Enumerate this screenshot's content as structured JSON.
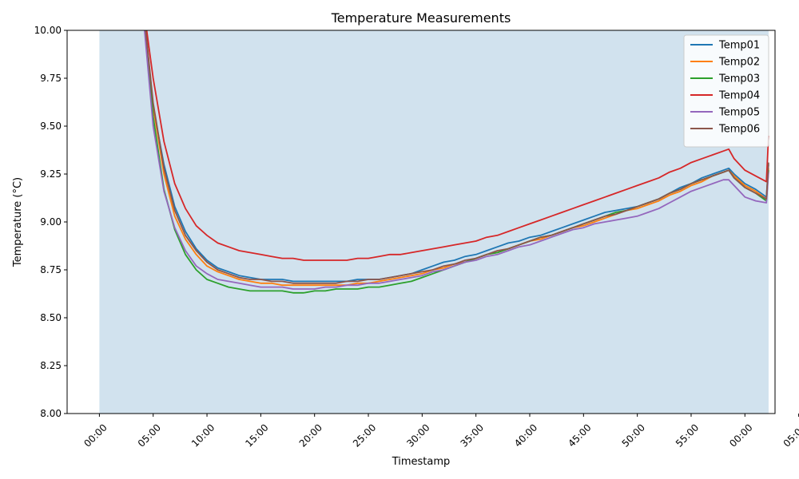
{
  "chart_data": {
    "type": "line",
    "title": "Temperature Measurements",
    "xlabel": "Timestamp",
    "ylabel": "Temperature (°C)",
    "xlim": [
      -3,
      62.8
    ],
    "ylim": [
      8.0,
      10.0
    ],
    "x_unit": "minutes",
    "x_ticks": [
      {
        "x": 0,
        "label": "00:00"
      },
      {
        "x": 5,
        "label": "05:00"
      },
      {
        "x": 10,
        "label": "10:00"
      },
      {
        "x": 15,
        "label": "15:00"
      },
      {
        "x": 20,
        "label": "20:00"
      },
      {
        "x": 25,
        "label": "25:00"
      },
      {
        "x": 30,
        "label": "30:00"
      },
      {
        "x": 35,
        "label": "35:00"
      },
      {
        "x": 40,
        "label": "40:00"
      },
      {
        "x": 45,
        "label": "45:00"
      },
      {
        "x": 50,
        "label": "50:00"
      },
      {
        "x": 55,
        "label": "55:00"
      },
      {
        "x": 60,
        "label": "00:00"
      },
      {
        "x": 65,
        "label": "05:00"
      }
    ],
    "y_ticks": [
      "8.00",
      "8.25",
      "8.50",
      "8.75",
      "9.00",
      "9.25",
      "9.50",
      "9.75",
      "10.00"
    ],
    "shaded_region": {
      "x_start": 0,
      "x_end": 62.2,
      "color": "#d1e2ee"
    },
    "grid": false,
    "legend": "top-right",
    "series": [
      {
        "name": "Temp01",
        "color": "#1f77b4",
        "x": [
          4.3,
          5,
          6,
          7,
          8,
          9,
          10,
          11,
          12,
          13,
          14,
          15,
          16,
          17,
          18,
          19,
          20,
          21,
          22,
          23,
          24,
          25,
          26,
          27,
          28,
          29,
          30,
          31,
          32,
          33,
          34,
          35,
          36,
          37,
          38,
          39,
          40,
          41,
          42,
          43,
          44,
          45,
          46,
          47,
          48,
          49,
          50,
          51,
          52,
          53,
          54,
          55,
          56,
          57,
          58,
          58.5,
          59,
          60,
          61,
          62,
          62.2
        ],
        "y": [
          10.0,
          9.6,
          9.3,
          9.08,
          8.95,
          8.86,
          8.8,
          8.76,
          8.74,
          8.72,
          8.71,
          8.7,
          8.7,
          8.7,
          8.69,
          8.69,
          8.69,
          8.69,
          8.69,
          8.69,
          8.7,
          8.7,
          8.7,
          8.71,
          8.72,
          8.73,
          8.75,
          8.77,
          8.79,
          8.8,
          8.82,
          8.83,
          8.85,
          8.87,
          8.89,
          8.9,
          8.92,
          8.93,
          8.95,
          8.97,
          8.99,
          9.01,
          9.03,
          9.05,
          9.06,
          9.07,
          9.08,
          9.1,
          9.12,
          9.15,
          9.18,
          9.2,
          9.23,
          9.25,
          9.27,
          9.28,
          9.25,
          9.2,
          9.17,
          9.13,
          9.3
        ]
      },
      {
        "name": "Temp02",
        "color": "#ff7f0e",
        "x": [
          4.3,
          5,
          6,
          7,
          8,
          9,
          10,
          11,
          12,
          13,
          14,
          15,
          16,
          17,
          18,
          19,
          20,
          21,
          22,
          23,
          24,
          25,
          26,
          27,
          28,
          29,
          30,
          31,
          32,
          33,
          34,
          35,
          36,
          37,
          38,
          39,
          40,
          41,
          42,
          43,
          44,
          45,
          46,
          47,
          48,
          49,
          50,
          51,
          52,
          53,
          54,
          55,
          56,
          57,
          58,
          58.5,
          59,
          60,
          61,
          62,
          62.2
        ],
        "y": [
          10.0,
          9.6,
          9.25,
          9.03,
          8.91,
          8.83,
          8.77,
          8.74,
          8.72,
          8.7,
          8.69,
          8.68,
          8.68,
          8.67,
          8.67,
          8.67,
          8.67,
          8.67,
          8.67,
          8.67,
          8.68,
          8.68,
          8.69,
          8.7,
          8.71,
          8.72,
          8.73,
          8.75,
          8.76,
          8.78,
          8.79,
          8.81,
          8.83,
          8.84,
          8.86,
          8.88,
          8.9,
          8.91,
          8.93,
          8.95,
          8.97,
          8.98,
          9.0,
          9.02,
          9.04,
          9.06,
          9.07,
          9.09,
          9.11,
          9.14,
          9.16,
          9.19,
          9.21,
          9.24,
          9.26,
          9.27,
          9.24,
          9.19,
          9.16,
          9.12,
          9.28
        ]
      },
      {
        "name": "Temp03",
        "color": "#2ca02c",
        "x": [
          4.3,
          5,
          6,
          7,
          8,
          9,
          10,
          11,
          12,
          13,
          14,
          15,
          16,
          17,
          18,
          19,
          20,
          21,
          22,
          23,
          24,
          25,
          26,
          27,
          28,
          29,
          30,
          31,
          32,
          33,
          34,
          35,
          36,
          37,
          38,
          39,
          40,
          41,
          42,
          43,
          44,
          45,
          46,
          47,
          48,
          49,
          50,
          51,
          52,
          53,
          54,
          55,
          56,
          57,
          58,
          58.5,
          59,
          60,
          61,
          62,
          62.2
        ],
        "y": [
          10.0,
          9.55,
          9.17,
          8.96,
          8.83,
          8.75,
          8.7,
          8.68,
          8.66,
          8.65,
          8.64,
          8.64,
          8.64,
          8.64,
          8.63,
          8.63,
          8.64,
          8.64,
          8.65,
          8.65,
          8.65,
          8.66,
          8.66,
          8.67,
          8.68,
          8.69,
          8.71,
          8.73,
          8.75,
          8.77,
          8.79,
          8.81,
          8.83,
          8.84,
          8.86,
          8.88,
          8.9,
          8.92,
          8.93,
          8.95,
          8.97,
          8.99,
          9.01,
          9.03,
          9.05,
          9.06,
          9.08,
          9.1,
          9.12,
          9.15,
          9.17,
          9.2,
          9.22,
          9.24,
          9.26,
          9.27,
          9.23,
          9.18,
          9.15,
          9.11,
          9.27
        ]
      },
      {
        "name": "Temp04",
        "color": "#d62728",
        "x": [
          4.4,
          5,
          6,
          7,
          8,
          9,
          10,
          11,
          12,
          13,
          14,
          15,
          16,
          17,
          18,
          19,
          20,
          21,
          22,
          23,
          24,
          25,
          26,
          27,
          28,
          29,
          30,
          31,
          32,
          33,
          34,
          35,
          36,
          37,
          38,
          39,
          40,
          41,
          42,
          43,
          44,
          45,
          46,
          47,
          48,
          49,
          50,
          51,
          52,
          53,
          54,
          55,
          56,
          57,
          58,
          58.5,
          59,
          60,
          61,
          62,
          62.2
        ],
        "y": [
          10.0,
          9.75,
          9.42,
          9.2,
          9.07,
          8.98,
          8.93,
          8.89,
          8.87,
          8.85,
          8.84,
          8.83,
          8.82,
          8.81,
          8.81,
          8.8,
          8.8,
          8.8,
          8.8,
          8.8,
          8.81,
          8.81,
          8.82,
          8.83,
          8.83,
          8.84,
          8.85,
          8.86,
          8.87,
          8.88,
          8.89,
          8.9,
          8.92,
          8.93,
          8.95,
          8.97,
          8.99,
          9.01,
          9.03,
          9.05,
          9.07,
          9.09,
          9.11,
          9.13,
          9.15,
          9.17,
          9.19,
          9.21,
          9.23,
          9.26,
          9.28,
          9.31,
          9.33,
          9.35,
          9.37,
          9.38,
          9.33,
          9.27,
          9.24,
          9.21,
          9.45
        ]
      },
      {
        "name": "Temp05",
        "color": "#9467bd",
        "x": [
          4.2,
          5,
          6,
          7,
          8,
          9,
          10,
          11,
          12,
          13,
          14,
          15,
          16,
          17,
          18,
          19,
          20,
          21,
          22,
          23,
          24,
          25,
          26,
          27,
          28,
          29,
          30,
          31,
          32,
          33,
          34,
          35,
          36,
          37,
          38,
          39,
          40,
          41,
          42,
          43,
          44,
          45,
          46,
          47,
          48,
          49,
          50,
          51,
          52,
          53,
          54,
          55,
          56,
          57,
          58,
          58.5,
          59,
          60,
          61,
          62,
          62.2
        ],
        "y": [
          10.0,
          9.5,
          9.16,
          8.97,
          8.85,
          8.77,
          8.73,
          8.7,
          8.69,
          8.68,
          8.67,
          8.66,
          8.66,
          8.66,
          8.65,
          8.65,
          8.65,
          8.66,
          8.66,
          8.67,
          8.67,
          8.68,
          8.68,
          8.69,
          8.7,
          8.71,
          8.72,
          8.74,
          8.75,
          8.77,
          8.79,
          8.8,
          8.82,
          8.83,
          8.85,
          8.87,
          8.88,
          8.9,
          8.92,
          8.94,
          8.96,
          8.97,
          8.99,
          9.0,
          9.01,
          9.02,
          9.03,
          9.05,
          9.07,
          9.1,
          9.13,
          9.16,
          9.18,
          9.2,
          9.22,
          9.22,
          9.19,
          9.13,
          9.11,
          9.1,
          9.26
        ]
      },
      {
        "name": "Temp06",
        "color": "#8c564b",
        "x": [
          4.3,
          5,
          6,
          7,
          8,
          9,
          10,
          11,
          12,
          13,
          14,
          15,
          16,
          17,
          18,
          19,
          20,
          21,
          22,
          23,
          24,
          25,
          26,
          27,
          28,
          29,
          30,
          31,
          32,
          33,
          34,
          35,
          36,
          37,
          38,
          39,
          40,
          41,
          42,
          43,
          44,
          45,
          46,
          47,
          48,
          49,
          50,
          51,
          52,
          53,
          54,
          55,
          56,
          57,
          58,
          58.5,
          59,
          60,
          61,
          62,
          62.2
        ],
        "y": [
          10.0,
          9.62,
          9.28,
          9.06,
          8.93,
          8.85,
          8.79,
          8.75,
          8.73,
          8.71,
          8.7,
          8.7,
          8.69,
          8.69,
          8.68,
          8.68,
          8.68,
          8.68,
          8.68,
          8.69,
          8.69,
          8.7,
          8.7,
          8.71,
          8.72,
          8.73,
          8.74,
          8.75,
          8.77,
          8.78,
          8.8,
          8.81,
          8.83,
          8.85,
          8.86,
          8.88,
          8.9,
          8.92,
          8.93,
          8.95,
          8.97,
          8.99,
          9.01,
          9.03,
          9.04,
          9.06,
          9.08,
          9.1,
          9.12,
          9.15,
          9.17,
          9.2,
          9.22,
          9.24,
          9.26,
          9.27,
          9.23,
          9.18,
          9.15,
          9.12,
          9.31
        ]
      }
    ]
  }
}
